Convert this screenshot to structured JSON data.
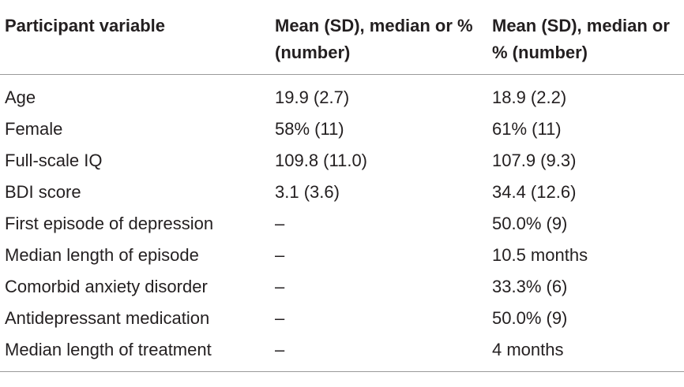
{
  "table": {
    "headers": [
      "Participant variable",
      "Mean (SD), median or % (number)",
      "Mean (SD), median or % (number)"
    ],
    "rows": [
      [
        "Age",
        "19.9 (2.7)",
        "18.9 (2.2)"
      ],
      [
        "Female",
        "58% (11)",
        "61% (11)"
      ],
      [
        "Full-scale IQ",
        "109.8 (11.0)",
        "107.9 (9.3)"
      ],
      [
        "BDI score",
        "3.1 (3.6)",
        "34.4 (12.6)"
      ],
      [
        "First episode of depression",
        "–",
        "50.0% (9)"
      ],
      [
        "Median length of episode",
        "–",
        "10.5 months"
      ],
      [
        "Comorbid anxiety disorder",
        "–",
        "33.3% (6)"
      ],
      [
        "Antidepressant medication",
        "–",
        "50.0% (9)"
      ],
      [
        "Median length of treatment",
        "–",
        "4 months"
      ]
    ]
  }
}
